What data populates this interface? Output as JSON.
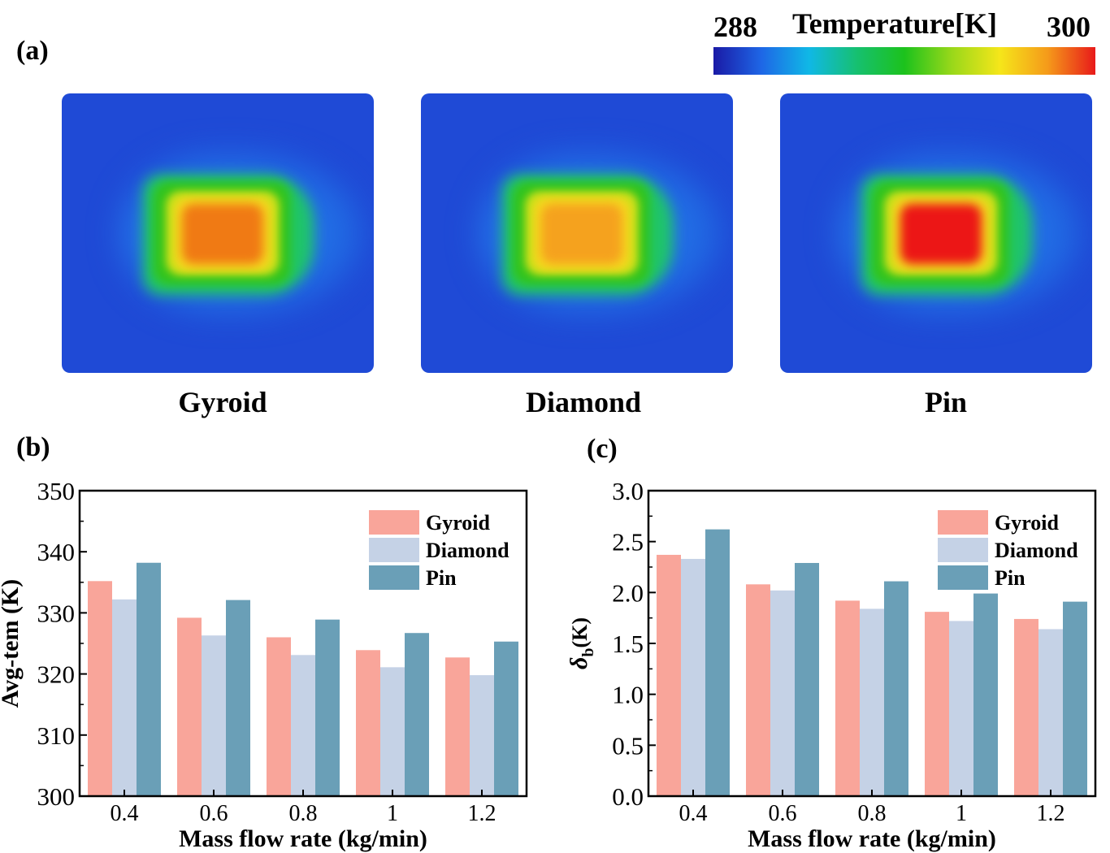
{
  "panel_a": {
    "label": "(a)",
    "colorbar": {
      "min_label": "288",
      "title": "Temperature[K]",
      "max_label": "300",
      "colors": [
        "#1a1aa6",
        "#1e66e6",
        "#10b8e6",
        "#16c070",
        "#1cc21c",
        "#9ad81a",
        "#f5e61a",
        "#f59a1a",
        "#e81a1a"
      ]
    },
    "maps": [
      {
        "name": "Gyroid",
        "peak_color": "#f07a14"
      },
      {
        "name": "Diamond",
        "peak_color": "#f5a21e"
      },
      {
        "name": "Pin",
        "peak_color": "#ec1616"
      }
    ]
  },
  "chart_data": [
    {
      "panel_label": "(b)",
      "type": "bar",
      "categories": [
        "0.4",
        "0.6",
        "0.8",
        "1",
        "1.2"
      ],
      "series": [
        {
          "name": "Gyroid",
          "color": "#f9a59a",
          "values": [
            335.2,
            329.2,
            326.0,
            323.9,
            322.7
          ]
        },
        {
          "name": "Diamond",
          "color": "#c5d2e6",
          "values": [
            332.2,
            326.3,
            323.1,
            321.1,
            319.8
          ]
        },
        {
          "name": "Pin",
          "color": "#6a9fb7",
          "values": [
            338.2,
            332.1,
            328.9,
            326.7,
            325.3
          ]
        }
      ],
      "xlabel": "Mass flow rate (kg/min)",
      "ylabel": "Avg-tem (K)",
      "ylim": [
        300,
        350
      ],
      "yticks": [
        "300",
        "310",
        "320",
        "330",
        "340",
        "350"
      ],
      "legend_position": "top-right"
    },
    {
      "panel_label": "(c)",
      "type": "bar",
      "categories": [
        "0.4",
        "0.6",
        "0.8",
        "1",
        "1.2"
      ],
      "series": [
        {
          "name": "Gyroid",
          "color": "#f9a59a",
          "values": [
            2.37,
            2.08,
            1.92,
            1.81,
            1.74
          ]
        },
        {
          "name": "Diamond",
          "color": "#c5d2e6",
          "values": [
            2.33,
            2.02,
            1.84,
            1.72,
            1.64
          ]
        },
        {
          "name": "Pin",
          "color": "#6a9fb7",
          "values": [
            2.62,
            2.29,
            2.11,
            1.99,
            1.91
          ]
        }
      ],
      "xlabel": "Mass flow rate (kg/min)",
      "ylabel_main": "δ",
      "ylabel_sub": "b",
      "ylabel_unit": "(K)",
      "ylim": [
        0,
        3.0
      ],
      "yticks": [
        "0.0",
        "0.5",
        "1.0",
        "1.5",
        "2.0",
        "2.5",
        "3.0"
      ],
      "legend_position": "top-right"
    }
  ]
}
